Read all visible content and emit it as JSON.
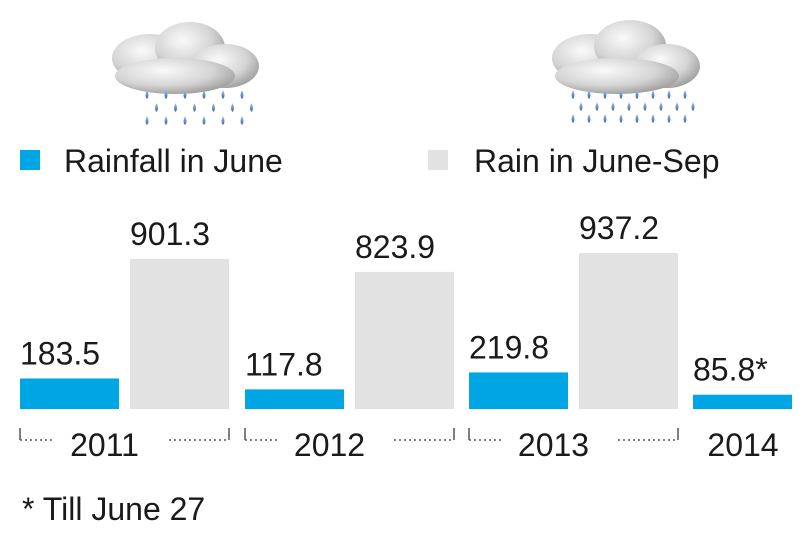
{
  "legend": {
    "june_label": "Rainfall in June",
    "season_label": "Rain in June-Sep"
  },
  "footnote": "* Till June 27",
  "colors": {
    "june": "#00a6e4",
    "season": "#e2e2e2"
  },
  "icons": [
    "rain-cloud-icon",
    "heavy-rain-cloud-icon"
  ],
  "chart_data": {
    "type": "bar",
    "categories": [
      "2011",
      "2012",
      "2013",
      "2014"
    ],
    "series": [
      {
        "name": "Rainfall in June",
        "values": [
          183.5,
          117.8,
          219.8,
          85.8
        ],
        "labels": [
          "183.5",
          "117.8",
          "219.8",
          "85.8*"
        ]
      },
      {
        "name": "Rain in June-Sep",
        "values": [
          901.3,
          823.9,
          937.2,
          null
        ],
        "labels": [
          "901.3",
          "823.9",
          "937.2",
          ""
        ]
      }
    ],
    "ylim": [
      0,
      1000
    ],
    "grid": false,
    "legend_position": "top"
  }
}
